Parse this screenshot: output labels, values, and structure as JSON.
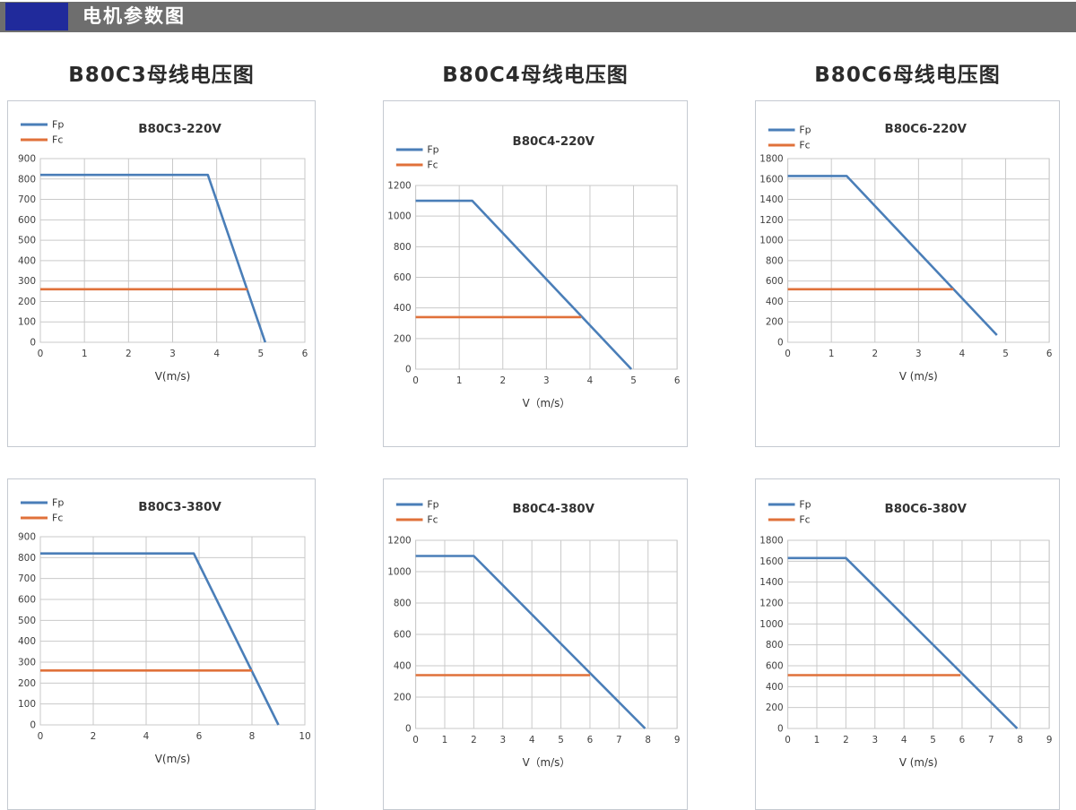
{
  "header": {
    "title": "电机参数图"
  },
  "section_titles": [
    "B80C3母线电压图",
    "B80C4母线电压图",
    "B80C6母线电压图"
  ],
  "colors": {
    "fp": "#4a7eb8",
    "fc": "#e0713a",
    "grid": "#c9c9c9",
    "tick_text": "#3f3f3f",
    "chart_text": "#333333",
    "header_bar": "#6e6e6e",
    "header_accent": "#202a9b",
    "panel_border": "#c5cad1"
  },
  "chart_data": [
    {
      "type": "line",
      "title": "B80C3-220V",
      "xlabel": "V(m/s)",
      "xlim": [
        0,
        6
      ],
      "xstep": 1,
      "ylim": [
        0,
        900
      ],
      "ystep": 100,
      "grid": true,
      "legend_position": "top-left",
      "series": [
        {
          "name": "Fp",
          "color_key": "fp",
          "points": [
            [
              0,
              820
            ],
            [
              3.8,
              820
            ],
            [
              5.1,
              0
            ]
          ]
        },
        {
          "name": "Fc",
          "color_key": "fc",
          "points": [
            [
              0,
              260
            ],
            [
              4.7,
              260
            ]
          ]
        }
      ]
    },
    {
      "type": "line",
      "title": "B80C4-220V",
      "xlabel": "V（m/s）",
      "xlim": [
        0,
        6
      ],
      "xstep": 1,
      "ylim": [
        0,
        1200
      ],
      "ystep": 200,
      "grid": true,
      "legend_position": "top-left",
      "series": [
        {
          "name": "Fp",
          "color_key": "fp",
          "points": [
            [
              0,
              1100
            ],
            [
              1.3,
              1100
            ],
            [
              4.95,
              0
            ]
          ]
        },
        {
          "name": "Fc",
          "color_key": "fc",
          "points": [
            [
              0,
              340
            ],
            [
              3.8,
              340
            ]
          ]
        }
      ]
    },
    {
      "type": "line",
      "title": "B80C6-220V",
      "xlabel": "V (m/s)",
      "xlim": [
        0,
        6
      ],
      "xstep": 1,
      "ylim": [
        0,
        1800
      ],
      "ystep": 200,
      "grid": true,
      "legend_position": "top-left",
      "series": [
        {
          "name": "Fp",
          "color_key": "fp",
          "points": [
            [
              0,
              1630
            ],
            [
              1.35,
              1630
            ],
            [
              4.8,
              70
            ]
          ]
        },
        {
          "name": "Fc",
          "color_key": "fc",
          "points": [
            [
              0,
              520
            ],
            [
              3.8,
              520
            ]
          ]
        }
      ]
    },
    {
      "type": "line",
      "title": "B80C3-380V",
      "xlabel": "V(m/s)",
      "xlim": [
        0,
        10
      ],
      "xstep": 2,
      "ylim": [
        0,
        900
      ],
      "ystep": 100,
      "grid": true,
      "legend_position": "top-left",
      "series": [
        {
          "name": "Fp",
          "color_key": "fp",
          "points": [
            [
              0,
              820
            ],
            [
              5.8,
              820
            ],
            [
              9,
              0
            ]
          ]
        },
        {
          "name": "Fc",
          "color_key": "fc",
          "points": [
            [
              0,
              260
            ],
            [
              8,
              260
            ]
          ]
        }
      ]
    },
    {
      "type": "line",
      "title": "B80C4-380V",
      "xlabel": "V（m/s）",
      "xlim": [
        0,
        9
      ],
      "xstep": 1,
      "ylim": [
        0,
        1200
      ],
      "ystep": 200,
      "grid": true,
      "legend_position": "top-left",
      "series": [
        {
          "name": "Fp",
          "color_key": "fp",
          "points": [
            [
              0,
              1100
            ],
            [
              2,
              1100
            ],
            [
              7.9,
              0
            ]
          ]
        },
        {
          "name": "Fc",
          "color_key": "fc",
          "points": [
            [
              0,
              340
            ],
            [
              6,
              340
            ]
          ]
        }
      ]
    },
    {
      "type": "line",
      "title": "B80C6-380V",
      "xlabel": "V (m/s)",
      "xlim": [
        0,
        9
      ],
      "xstep": 1,
      "ylim": [
        0,
        1800
      ],
      "ystep": 200,
      "grid": true,
      "legend_position": "top-left",
      "series": [
        {
          "name": "Fp",
          "color_key": "fp",
          "points": [
            [
              0,
              1630
            ],
            [
              2,
              1630
            ],
            [
              7.9,
              0
            ]
          ]
        },
        {
          "name": "Fc",
          "color_key": "fc",
          "points": [
            [
              0,
              510
            ],
            [
              5.95,
              510
            ]
          ]
        }
      ]
    }
  ]
}
